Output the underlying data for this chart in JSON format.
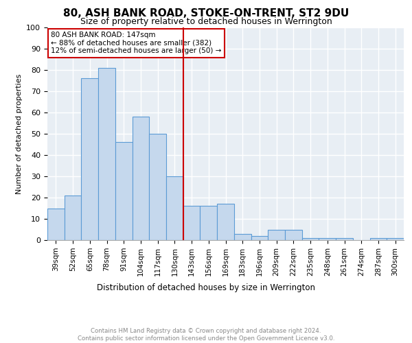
{
  "title": "80, ASH BANK ROAD, STOKE-ON-TRENT, ST2 9DU",
  "subtitle": "Size of property relative to detached houses in Werrington",
  "xlabel": "Distribution of detached houses by size in Werrington",
  "ylabel": "Number of detached properties",
  "categories": [
    "39sqm",
    "52sqm",
    "65sqm",
    "78sqm",
    "91sqm",
    "104sqm",
    "117sqm",
    "130sqm",
    "143sqm",
    "156sqm",
    "169sqm",
    "183sqm",
    "196sqm",
    "209sqm",
    "222sqm",
    "235sqm",
    "248sqm",
    "261sqm",
    "274sqm",
    "287sqm",
    "300sqm"
  ],
  "values": [
    15,
    21,
    76,
    81,
    46,
    58,
    50,
    30,
    16,
    16,
    17,
    3,
    2,
    5,
    5,
    1,
    1,
    1,
    0,
    1,
    1
  ],
  "bar_color": "#c5d8ed",
  "bar_edge_color": "#5b9bd5",
  "vline_x_index": 8,
  "vline_color": "#cc0000",
  "annotation_lines": [
    "80 ASH BANK ROAD: 147sqm",
    "← 88% of detached houses are smaller (382)",
    "12% of semi-detached houses are larger (50) →"
  ],
  "annotation_box_color": "#cc0000",
  "ylim": [
    0,
    100
  ],
  "yticks": [
    0,
    10,
    20,
    30,
    40,
    50,
    60,
    70,
    80,
    90,
    100
  ],
  "background_color": "#e8eef4",
  "grid_color": "#ffffff",
  "title_fontsize": 11,
  "subtitle_fontsize": 9,
  "footer_line1": "Contains HM Land Registry data © Crown copyright and database right 2024.",
  "footer_line2": "Contains public sector information licensed under the Open Government Licence v3.0."
}
